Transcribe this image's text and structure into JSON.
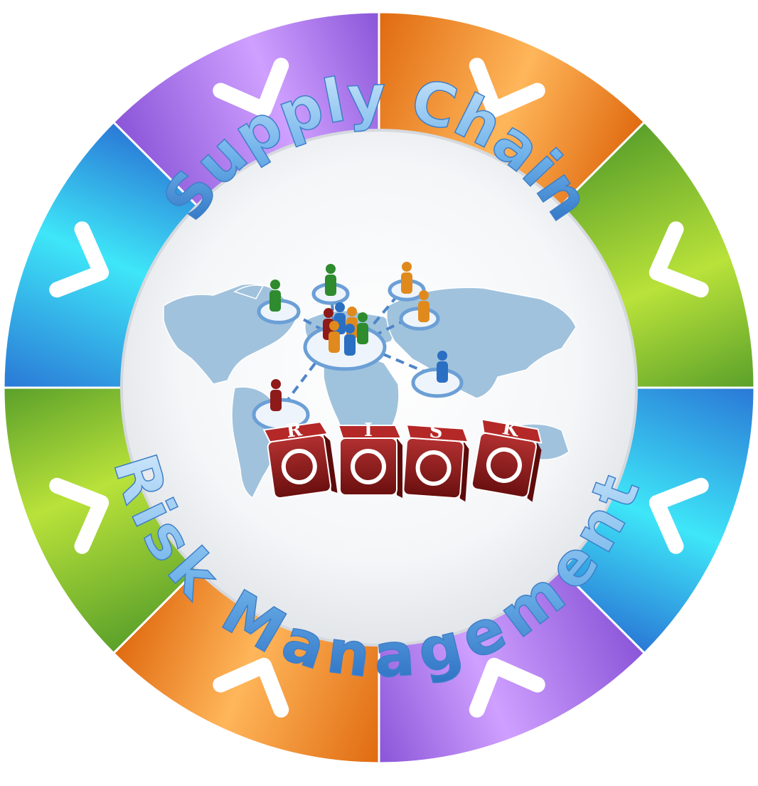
{
  "title_top": "Supply Chain",
  "title_bottom": "Risk Management",
  "dice_letters": [
    "R",
    "I",
    "S",
    "K"
  ],
  "dice_icons": [
    "soldier-icon",
    "airplane-icon",
    "biohazard-icon",
    "computer-mouse-icon"
  ],
  "segments": [
    {
      "name": "segment-orange-top",
      "color_light": "#ffb65a",
      "color_dark": "#e06a10"
    },
    {
      "name": "segment-green-top-right",
      "color_light": "#b9e23a",
      "color_dark": "#5aa02a"
    },
    {
      "name": "segment-blue-right",
      "color_light": "#3ee6f8",
      "color_dark": "#2a78d6"
    },
    {
      "name": "segment-purple-bottom-right",
      "color_light": "#cfa0ff",
      "color_dark": "#8a55d8"
    },
    {
      "name": "segment-orange-bottom",
      "color_light": "#ffb65a",
      "color_dark": "#e06a10"
    },
    {
      "name": "segment-green-bottom-left",
      "color_light": "#b9e23a",
      "color_dark": "#5aa02a"
    },
    {
      "name": "segment-blue-left",
      "color_light": "#3ee6f8",
      "color_dark": "#2a78d6"
    },
    {
      "name": "segment-purple-top-left",
      "color_light": "#cfa0ff",
      "color_dark": "#8a55d8"
    }
  ],
  "colors": {
    "text_blue_light": "#9ed0f5",
    "text_blue_dark": "#2a6fc2",
    "map_blue": "#9cc0dc",
    "dice_red": "#8e1a1a"
  }
}
